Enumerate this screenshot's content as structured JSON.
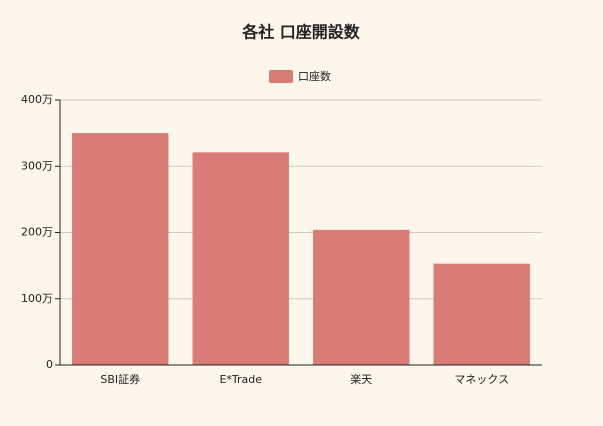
{
  "chart_data": {
    "type": "bar",
    "title": "各社 口座開設数",
    "categories": [
      "SBI証券",
      "E*Trade",
      "楽天",
      "マネックス"
    ],
    "series": [
      {
        "name": "口座数",
        "color": "#d97c78",
        "values": [
          350,
          321,
          204,
          153
        ]
      }
    ],
    "ylim": [
      0,
      400
    ],
    "yticks": [
      0,
      {
        "value": 100,
        "label": "100万"
      },
      {
        "value": 200,
        "label": "200万"
      },
      {
        "value": 300,
        "label": "300万"
      },
      {
        "value": 400,
        "label": "400万"
      }
    ],
    "grid": true,
    "legend": "top"
  }
}
